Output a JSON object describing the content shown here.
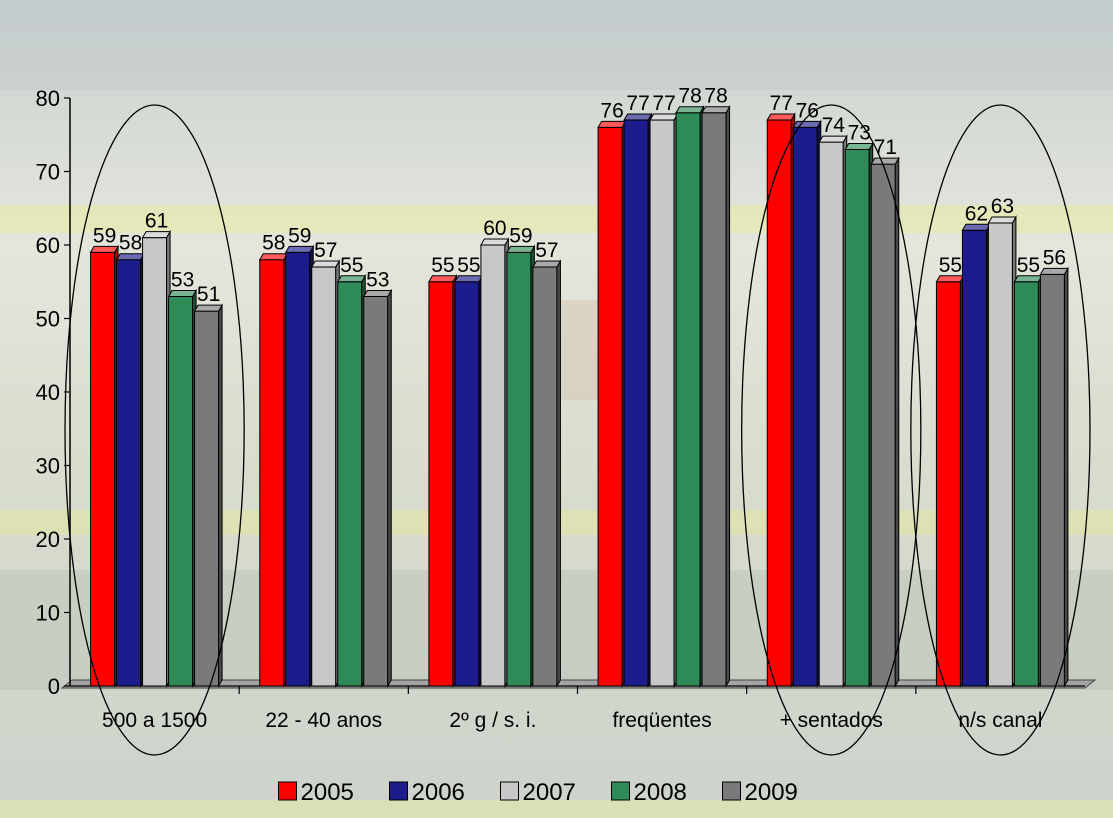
{
  "chart_data": {
    "type": "bar",
    "title": "",
    "xlabel": "",
    "ylabel": "",
    "ylim": [
      0,
      80
    ],
    "yticks": [
      "0",
      "10",
      "20",
      "30",
      "40",
      "50",
      "60",
      "70",
      "80"
    ],
    "categories": [
      "500 a 1500",
      "22 - 40 anos",
      "2º g / s. i.",
      "freqüentes",
      "+ sentados",
      "n/s canal"
    ],
    "series": [
      {
        "name": "2005",
        "color": "#ff0000",
        "values": [
          59,
          58,
          55,
          76,
          77,
          55
        ]
      },
      {
        "name": "2006",
        "color": "#1c1c8c",
        "values": [
          58,
          59,
          55,
          77,
          76,
          62
        ]
      },
      {
        "name": "2007",
        "color": "#c8c8c8",
        "values": [
          61,
          57,
          60,
          77,
          74,
          63
        ]
      },
      {
        "name": "2008",
        "color": "#2e8b57",
        "values": [
          53,
          55,
          59,
          78,
          73,
          55
        ]
      },
      {
        "name": "2009",
        "color": "#7a7a7a",
        "values": [
          51,
          53,
          57,
          78,
          71,
          56
        ]
      }
    ],
    "grid": false,
    "legend_position": "bottom",
    "highlighted_categories": [
      "500 a 1500",
      "+ sentados",
      "n/s canal"
    ]
  }
}
